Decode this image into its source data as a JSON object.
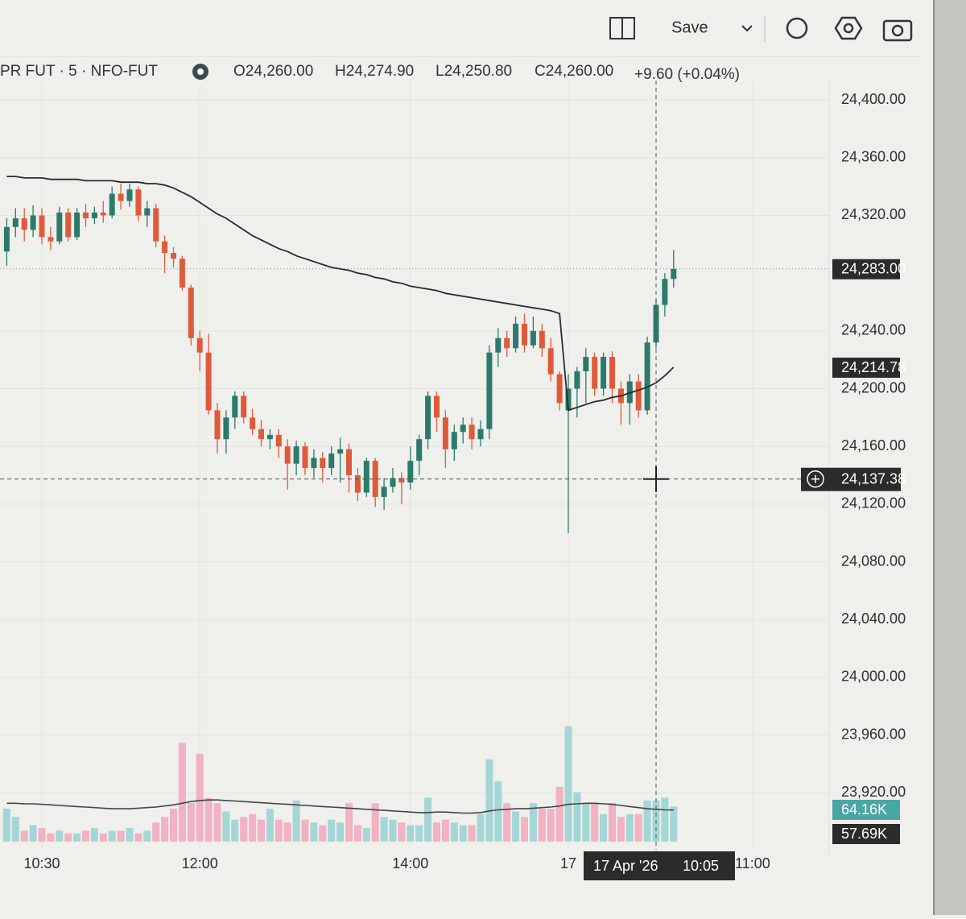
{
  "toolbar": {
    "save": "Save"
  },
  "legend": {
    "symbol": "PR FUT · 5 · NFO-FUT",
    "open": "O24,260.00",
    "high": "H24,274.90",
    "low": "L24,250.80",
    "close": "C24,260.00",
    "change": "+9.60 (+0.04%)"
  },
  "chart_data": {
    "type": "candlestick",
    "categories": [
      null,
      null,
      null,
      null,
      "10:30",
      null,
      null,
      null,
      null,
      null,
      null,
      null,
      null,
      null,
      null,
      null,
      null,
      null,
      null,
      null,
      null,
      null,
      "12:00",
      null,
      null,
      null,
      null,
      null,
      null,
      null,
      null,
      null,
      null,
      null,
      null,
      null,
      null,
      null,
      null,
      null,
      null,
      null,
      null,
      null,
      null,
      null,
      "14:00",
      null,
      null,
      null,
      null,
      null,
      null,
      null,
      null,
      null,
      null,
      null,
      null,
      null,
      null,
      null,
      null,
      null,
      "17",
      null,
      null,
      null,
      null,
      null,
      null,
      null,
      null,
      null,
      null,
      null,
      null,
      null,
      null,
      null,
      null,
      null,
      null,
      null,
      null,
      "11:00"
    ],
    "open": [
      24295,
      24312,
      24318,
      24310,
      24320,
      24305,
      24302,
      24322,
      24305,
      24322,
      24318,
      24322,
      24320,
      24335,
      24330,
      24338,
      24320,
      24325,
      24302,
      24294,
      24290,
      24270,
      24235,
      24225,
      24185,
      24165,
      24180,
      24195,
      24180,
      24172,
      24165,
      24168,
      24160,
      24148,
      24160,
      24145,
      24152,
      24145,
      24155,
      24158,
      24140,
      24128,
      24150,
      24125,
      24132,
      24138,
      24135,
      24150,
      24165,
      24195,
      24180,
      24158,
      24170,
      24175,
      24165,
      24172,
      24225,
      24235,
      24228,
      24245,
      24230,
      24240,
      24228,
      24210,
      24185,
      24200,
      24212,
      24222,
      24200,
      24222,
      24200,
      24190,
      24205,
      24185,
      24232,
      24258,
      24276,
      null,
      null,
      null,
      null,
      null,
      null,
      null,
      null,
      null
    ],
    "high": [
      24318,
      24325,
      24325,
      24327,
      24325,
      24312,
      24326,
      24325,
      24325,
      24328,
      24326,
      24330,
      24340,
      24342,
      24342,
      24340,
      24330,
      24328,
      24306,
      24298,
      24292,
      24272,
      24240,
      24238,
      24190,
      24185,
      24198,
      24198,
      24186,
      24178,
      24172,
      24172,
      24165,
      24164,
      24163,
      24158,
      24156,
      24160,
      24166,
      24162,
      24145,
      24152,
      24152,
      24138,
      24145,
      24142,
      24160,
      24168,
      24198,
      24198,
      24185,
      24175,
      24180,
      24180,
      24178,
      24230,
      24242,
      24240,
      24250,
      24252,
      24250,
      24245,
      24235,
      24212,
      24210,
      24215,
      24228,
      24225,
      24225,
      24226,
      24205,
      24210,
      24210,
      24236,
      24262,
      24280,
      24296,
      null,
      null,
      null,
      null,
      null,
      null,
      null,
      null,
      null
    ],
    "low": [
      24285,
      24305,
      24302,
      24305,
      24300,
      24296,
      24300,
      24302,
      24303,
      24312,
      24314,
      24315,
      24318,
      24324,
      24326,
      24316,
      24312,
      24298,
      24280,
      24284,
      24268,
      24230,
      24212,
      24182,
      24155,
      24155,
      24172,
      24176,
      24168,
      24160,
      24158,
      24152,
      24130,
      24140,
      24140,
      24138,
      24135,
      24140,
      24135,
      24128,
      24122,
      24125,
      24118,
      24116,
      24128,
      24120,
      24130,
      24140,
      24158,
      24170,
      24145,
      24150,
      24162,
      24158,
      24160,
      24165,
      24215,
      24222,
      24225,
      24225,
      24228,
      24222,
      24205,
      24185,
      24100,
      24180,
      24190,
      24195,
      24195,
      24190,
      24175,
      24175,
      24180,
      24182,
      24228,
      24250,
      24270,
      null,
      null,
      null,
      null,
      null,
      null,
      null,
      null,
      null
    ],
    "close": [
      24312,
      24318,
      24310,
      24320,
      24305,
      24302,
      24322,
      24305,
      24322,
      24318,
      24322,
      24320,
      24335,
      24330,
      24338,
      24320,
      24325,
      24302,
      24294,
      24290,
      24270,
      24235,
      24225,
      24185,
      24165,
      24180,
      24195,
      24180,
      24172,
      24165,
      24168,
      24160,
      24148,
      24160,
      24145,
      24152,
      24145,
      24155,
      24158,
      24140,
      24128,
      24150,
      24125,
      24132,
      24138,
      24135,
      24150,
      24165,
      24195,
      24180,
      24158,
      24170,
      24175,
      24165,
      24172,
      24225,
      24235,
      24228,
      24245,
      24230,
      24240,
      24228,
      24210,
      24190,
      24200,
      24212,
      24222,
      24200,
      24222,
      24200,
      24190,
      24205,
      24185,
      24232,
      24258,
      24276,
      24283,
      null,
      null,
      null,
      null,
      null,
      null,
      null,
      null,
      null
    ],
    "up_color": "#2b7a6c",
    "down_color": "#df5a3b",
    "ylim": [
      23880,
      24414
    ],
    "yticks": [
      {
        "value": 24400,
        "label": "24,400.00"
      },
      {
        "value": 24360,
        "label": "24,360.00"
      },
      {
        "value": 24320,
        "label": "24,320.00"
      },
      {
        "value": 24240,
        "label": "24,240.00"
      },
      {
        "value": 24200,
        "label": "24,200.00"
      },
      {
        "value": 24160,
        "label": "24,160.00"
      },
      {
        "value": 24120,
        "label": "24,120.00"
      },
      {
        "value": 24080,
        "label": "24,080.00"
      },
      {
        "value": 24040,
        "label": "24,040.00"
      },
      {
        "value": 24000,
        "label": "24,000.00"
      },
      {
        "value": 23960,
        "label": "23,960.00"
      },
      {
        "value": 23920,
        "label": "23,920.00"
      }
    ],
    "grid": true,
    "moving_average": {
      "color": "#2a2a2a",
      "values": [
        24347,
        24347,
        24346,
        24346,
        24346,
        24345,
        24345,
        24345,
        24345,
        24344,
        24344,
        24344,
        24344,
        24343,
        24343,
        24343,
        24342,
        24342,
        24341,
        24339,
        24336,
        24333,
        24329,
        24325,
        24321,
        24318,
        24314,
        24310,
        24306,
        24303,
        24300,
        24297,
        24295,
        24292,
        24290,
        24288,
        24286,
        24284,
        24283,
        24282,
        24280,
        24279,
        24277,
        24276,
        24274,
        24273,
        24271,
        24270,
        24269,
        24268,
        24266,
        24265,
        24264,
        24263,
        24262,
        24261,
        24260,
        24259,
        24258,
        24257,
        24256,
        24255,
        24254,
        24252,
        24185,
        24187,
        24189,
        24191,
        24192,
        24194,
        24195,
        24197,
        24199,
        24201,
        24204,
        24209,
        24214.78,
        null,
        null,
        null,
        null,
        null,
        null,
        null,
        null,
        null
      ]
    },
    "price_labels": [
      {
        "value": 24283,
        "label": "24,283.00"
      },
      {
        "value": 24214.78,
        "label": "24,214.78"
      }
    ],
    "volume": {
      "up_color": "#a5d6d6",
      "down_color": "#f1b2c3",
      "ylim": [
        0,
        330
      ],
      "values": [
        60,
        45,
        20,
        30,
        25,
        15,
        20,
        15,
        15,
        20,
        25,
        15,
        20,
        20,
        25,
        15,
        20,
        35,
        45,
        60,
        180,
        70,
        160,
        80,
        70,
        55,
        40,
        45,
        50,
        40,
        60,
        40,
        35,
        75,
        40,
        35,
        30,
        40,
        35,
        70,
        30,
        25,
        70,
        45,
        40,
        35,
        30,
        30,
        80,
        35,
        40,
        35,
        30,
        30,
        50,
        150,
        110,
        70,
        55,
        45,
        70,
        60,
        60,
        100,
        210,
        90,
        70,
        70,
        50,
        70,
        45,
        50,
        50,
        75,
        75,
        80,
        64.16,
        null,
        null,
        null,
        null,
        null,
        null,
        null,
        null,
        null
      ],
      "labels": [
        {
          "value": 64.16,
          "label": "64.16K",
          "color": "#4aa6a3"
        },
        {
          "value": 57.69,
          "label": "57.69K",
          "color": "#2b2b2b"
        }
      ],
      "average": {
        "color": "#444444",
        "values": [
          70,
          70,
          69,
          69,
          68,
          67,
          66,
          65,
          64,
          63,
          62,
          61,
          60,
          60,
          60,
          61,
          62,
          63,
          65,
          67,
          70,
          73,
          75,
          76,
          76,
          75,
          74,
          73,
          72,
          71,
          70,
          69,
          68,
          67,
          66,
          65,
          64,
          63,
          62,
          61,
          60,
          59,
          58,
          57,
          56,
          55,
          54,
          53,
          53,
          54,
          54,
          53,
          52,
          52,
          53,
          56,
          58,
          59,
          60,
          60,
          61,
          62,
          63,
          65,
          68,
          69,
          70,
          70,
          69,
          68,
          66,
          64,
          62,
          60,
          59,
          58,
          57.69,
          null,
          null,
          null,
          null,
          null,
          null,
          null,
          null,
          null
        ]
      }
    },
    "crosshair": {
      "price": {
        "value": 24137.38,
        "label": "24,137.38"
      },
      "date_label": "17 Apr '26",
      "time_label": "10:05"
    }
  }
}
